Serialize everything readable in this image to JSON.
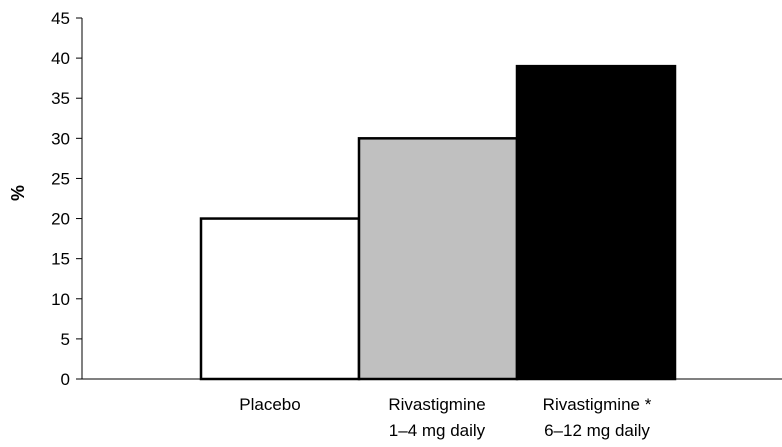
{
  "chart_data": {
    "type": "bar",
    "title": "",
    "xlabel": "",
    "ylabel": "%",
    "ylim": [
      0,
      45
    ],
    "yticks": [
      0,
      5,
      10,
      15,
      20,
      25,
      30,
      35,
      40,
      45
    ],
    "grid": false,
    "legend": "none",
    "categories": [
      {
        "line1": "Placebo",
        "line2": ""
      },
      {
        "line1": "Rivastigmine",
        "line2": "1–4 mg daily"
      },
      {
        "line1": "Rivastigmine *",
        "line2": "6–12 mg daily"
      }
    ],
    "values": [
      20,
      30,
      39
    ],
    "colors": [
      "#ffffff",
      "#c0c0c0",
      "#000000"
    ]
  }
}
